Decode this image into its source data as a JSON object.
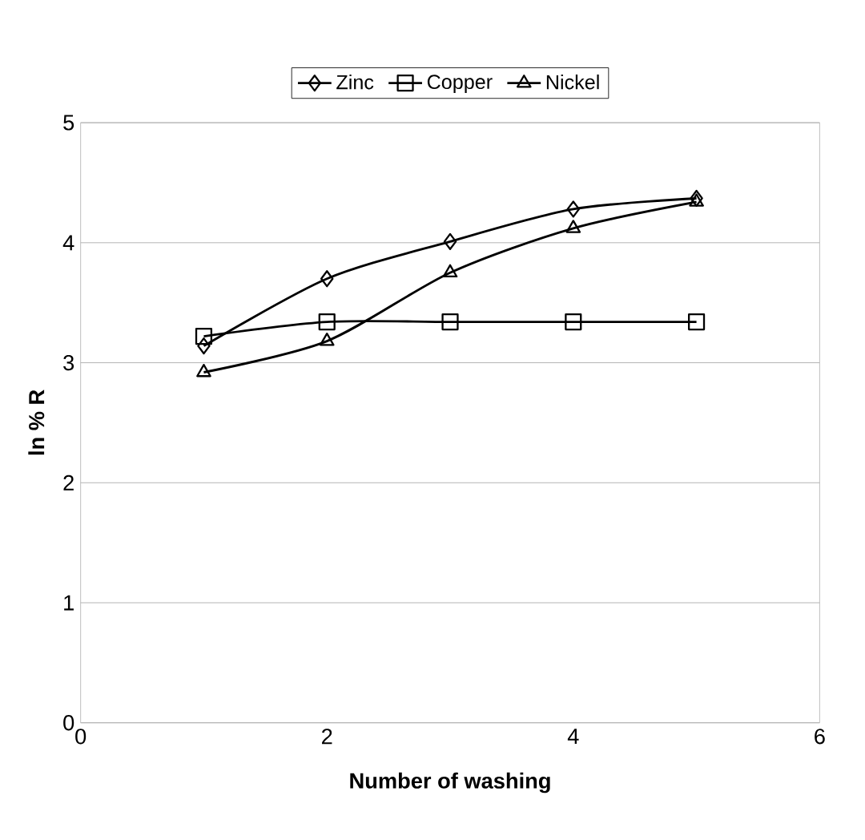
{
  "chart_data": {
    "type": "line",
    "xlabel": "Number of washing",
    "ylabel": "ln % R",
    "x": [
      1,
      2,
      3,
      4,
      5
    ],
    "series": [
      {
        "name": "Zinc",
        "color": "#000000",
        "marker": "diamond",
        "values": [
          3.14,
          3.7,
          4.01,
          4.28,
          4.37
        ]
      },
      {
        "name": "Copper",
        "color": "#000000",
        "marker": "square",
        "values": [
          3.22,
          3.34,
          3.34,
          3.34,
          3.34
        ]
      },
      {
        "name": "Nickel",
        "color": "#000000",
        "marker": "triangle",
        "values": [
          2.92,
          3.18,
          3.75,
          4.12,
          4.34
        ]
      }
    ],
    "xlim": [
      0,
      6
    ],
    "xticks": [
      0,
      2,
      4,
      6
    ],
    "ylim": [
      0,
      5
    ],
    "yticks": [
      0,
      1,
      2,
      3,
      4,
      5
    ],
    "grid": "y",
    "legend": "top",
    "line_style": "solid"
  }
}
